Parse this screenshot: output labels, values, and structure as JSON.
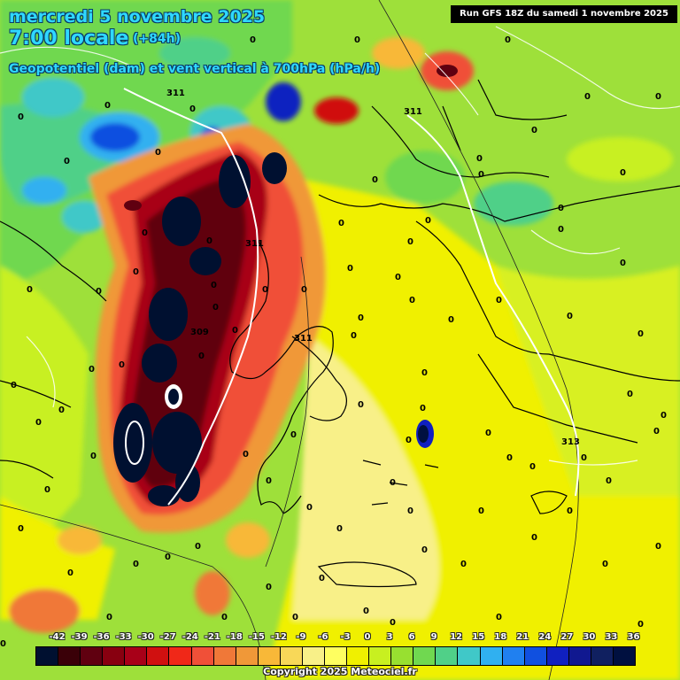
{
  "header": {
    "date": "mercredi 5 novembre 2025",
    "time": "7:00 locale",
    "lead": "(+84h)",
    "parameter": "Geopotentiel (dam) et vent vertical à 700hPa (hPa/h)",
    "run": "Run GFS 18Z du samedi 1 novembre 2025"
  },
  "legend": {
    "ticks": [
      "-42",
      "-39",
      "-36",
      "-33",
      "-30",
      "-27",
      "-24",
      "-21",
      "-18",
      "-15",
      "-12",
      "-9",
      "-6",
      "-3",
      "0",
      "3",
      "6",
      "9",
      "12",
      "15",
      "18",
      "21",
      "24",
      "27",
      "30",
      "33",
      "36"
    ],
    "colors": [
      "#001030",
      "#3a0008",
      "#600010",
      "#880010",
      "#a80018",
      "#d01010",
      "#f02818",
      "#f05038",
      "#f07838",
      "#f09838",
      "#f8b838",
      "#f8d858",
      "#f8f088",
      "#ffff60",
      "#f0f000",
      "#c8f020",
      "#98e030",
      "#70d850",
      "#50d088",
      "#40c8c8",
      "#30b0f0",
      "#2080f0",
      "#1050e0",
      "#1020c0",
      "#101890",
      "#102060",
      "#001040"
    ]
  },
  "isohypses": {
    "labels": [
      "311",
      "311",
      "311",
      "309",
      "311",
      "313"
    ]
  },
  "zero_labels": [
    "0",
    "0",
    "0",
    "0",
    "0",
    "0",
    "0",
    "0",
    "0",
    "0",
    "0",
    "0",
    "0",
    "0",
    "0",
    "0",
    "0",
    "0",
    "0",
    "0",
    "0",
    "0",
    "0",
    "0",
    "0",
    "0",
    "0",
    "0",
    "0",
    "0",
    "0",
    "0",
    "0",
    "0",
    "0",
    "0",
    "0",
    "0",
    "0",
    "0",
    "0",
    "0",
    "0",
    "0",
    "0",
    "0",
    "0",
    "0",
    "0",
    "0",
    "0",
    "0",
    "0",
    "0",
    "0",
    "0",
    "0",
    "0",
    "0",
    "0",
    "0",
    "0",
    "0",
    "0",
    "0",
    "0",
    "0",
    "0",
    "0",
    "0",
    "0",
    "0",
    "0",
    "0",
    "0",
    "0",
    "0",
    "0",
    "0",
    "0",
    "0",
    "0",
    "0",
    "0",
    "0",
    "0",
    "0",
    "0",
    "0"
  ],
  "copyright": "Copyright 2025 Meteociel.fr"
}
